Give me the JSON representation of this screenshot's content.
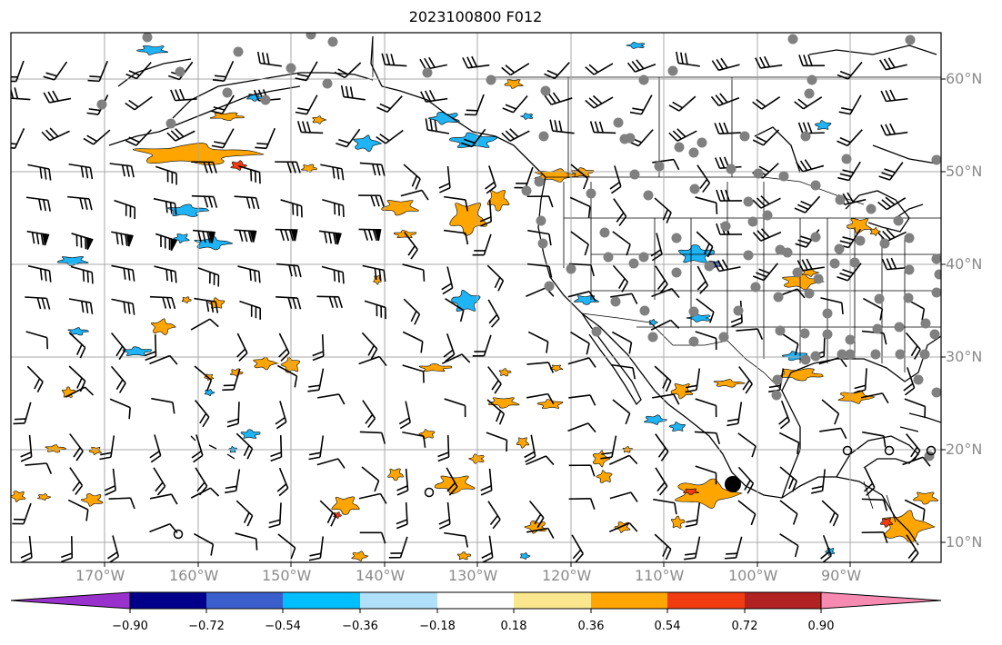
{
  "title": "2023100800 F012",
  "colors": {
    "frame": "#000000",
    "grid": "#a8a8a8",
    "ticklabel": "#8a8a8a",
    "orange": "#ffa500",
    "red": "#f03c10",
    "yellow": "#fae68c",
    "cyan": "#1eb4f5",
    "lightblue": "#a8dcfa",
    "blue": "#3c64c8",
    "station": "#808080"
  },
  "lon_labels": [
    "170°W",
    "160°W",
    "150°W",
    "140°W",
    "130°W",
    "120°W",
    "110°W",
    "100°W",
    "90°W"
  ],
  "lat_labels": [
    "60°N",
    "50°N",
    "40°N",
    "30°N",
    "20°N",
    "10°N"
  ],
  "colorbar": {
    "colors": [
      "#9932cc",
      "#00008b",
      "#3a5fcd",
      "#00bfff",
      "#b0e0fa",
      "#ffffff",
      "#fae68c",
      "#ffa500",
      "#f03c10",
      "#b22222",
      "#f68ab0"
    ],
    "tick_labels": [
      "−0.90",
      "−0.72",
      "−0.54",
      "−0.36",
      "−0.18",
      "0.18",
      "0.36",
      "0.54",
      "0.72",
      "0.90"
    ]
  },
  "features": {
    "wind_barbs": "gridded wind barbs over ocean and land",
    "stations": "gray filled circles at observation sites",
    "highlight_marker": "black filled circle near 102°W 16°N",
    "open_circles": "small open circles near 20°N"
  }
}
